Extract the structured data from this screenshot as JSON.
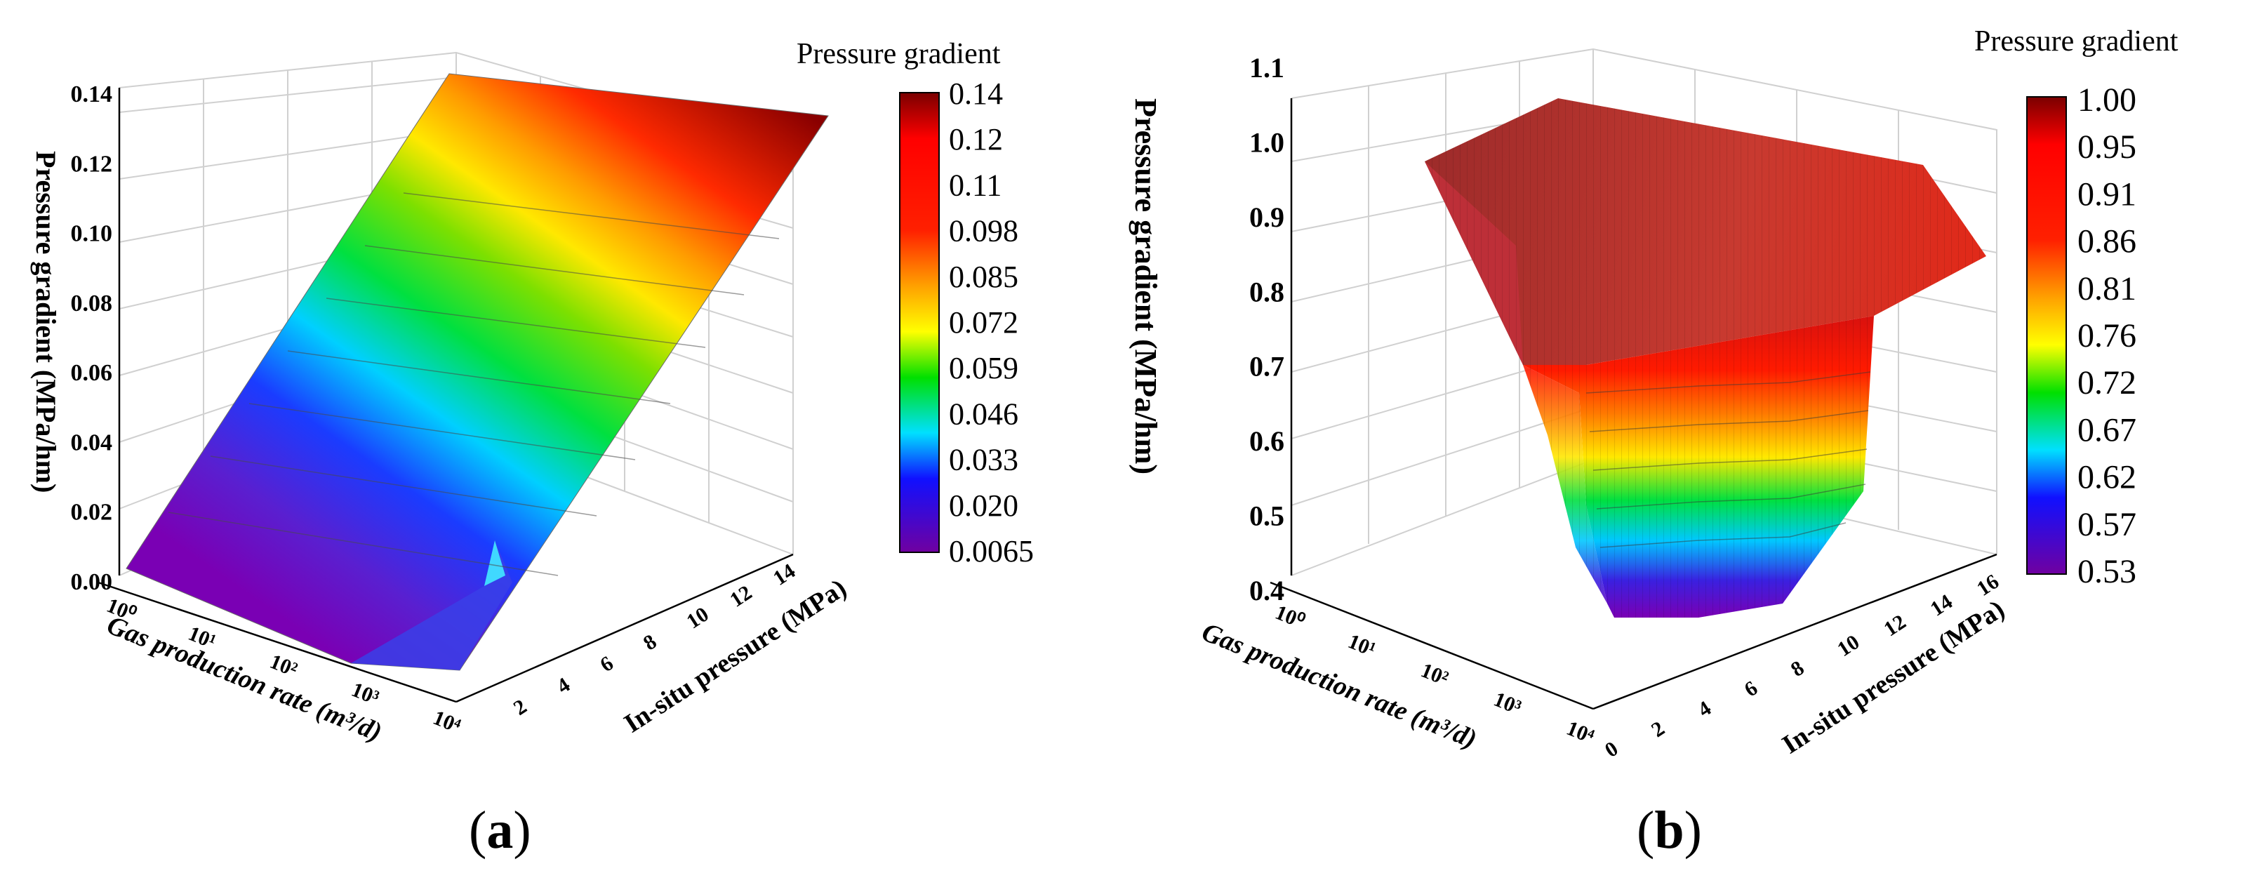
{
  "panels": [
    {
      "id": "a",
      "panel_label": "a",
      "chart_data": {
        "type": "surface3d",
        "zlabel": "Pressure gradient (MPa/hm)",
        "xlabel": "Gas production rate (m³/d)",
        "ylabel": "In-situ pressure (MPa)",
        "zticks": [
          "0.00",
          "0.02",
          "0.04",
          "0.06",
          "0.08",
          "0.10",
          "0.12",
          "0.14"
        ],
        "zlim": [
          0,
          0.14
        ],
        "xticks": [
          "10⁰",
          "10¹",
          "10²",
          "10³",
          "10⁴"
        ],
        "xlim_log10": [
          0,
          4
        ],
        "yticks": [
          "2",
          "4",
          "6",
          "8",
          "10",
          "12",
          "14"
        ],
        "ylim": [
          1,
          14
        ],
        "colorbar": {
          "title": "Pressure gradient",
          "ticks": [
            "0.14",
            "0.12",
            "0.11",
            "0.098",
            "0.085",
            "0.072",
            "0.059",
            "0.046",
            "0.033",
            "0.020",
            "0.0065"
          ]
        },
        "surface_profile": {
          "description_axis": "in-situ pressure (MPa) vs pressure gradient, nearly flat along gas rate",
          "pressure": [
            1,
            2,
            4,
            6,
            8,
            10,
            12,
            14
          ],
          "gradient": [
            0.0065,
            0.008,
            0.02,
            0.04,
            0.06,
            0.085,
            0.11,
            0.138
          ]
        }
      }
    },
    {
      "id": "b",
      "panel_label": "b",
      "chart_data": {
        "type": "surface3d",
        "zlabel": "Pressure gradient (MPa/hm)",
        "xlabel": "Gas production rate (m³/d)",
        "ylabel": "In-situ pressure (MPa)",
        "zticks": [
          "0.4",
          "0.5",
          "0.6",
          "0.7",
          "0.8",
          "0.9",
          "1.0",
          "1.1"
        ],
        "zlim": [
          0.4,
          1.1
        ],
        "xticks": [
          "10⁰",
          "10¹",
          "10²",
          "10³",
          "10⁴"
        ],
        "xlim_log10": [
          0,
          4
        ],
        "yticks": [
          "0",
          "2",
          "4",
          "6",
          "8",
          "10",
          "12",
          "14",
          "16"
        ],
        "ylim": [
          0,
          16
        ],
        "colorbar": {
          "title": "Pressure gradient",
          "ticks": [
            "1.00",
            "0.95",
            "0.91",
            "0.86",
            "0.81",
            "0.76",
            "0.72",
            "0.67",
            "0.62",
            "0.57",
            "0.53"
          ]
        },
        "surface_profile": {
          "description_axis": "plateau near 1.0 at low rates, drops to ~0.53 at low pressure and high rate",
          "plateau_value": 1.0,
          "minimum_value": 0.53
        }
      }
    }
  ]
}
